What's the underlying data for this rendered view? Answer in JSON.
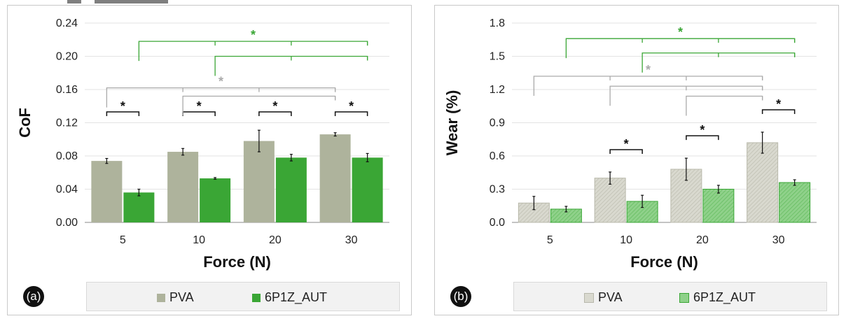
{
  "chart_data": [
    {
      "id": "a",
      "type": "bar",
      "panel_label": "(a)",
      "xlabel": "Force (N)",
      "ylabel": "CoF",
      "categories": [
        "5",
        "10",
        "20",
        "30"
      ],
      "yticks": [
        "0.00",
        "0.04",
        "0.08",
        "0.12",
        "0.16",
        "0.20",
        "0.24"
      ],
      "ylim": [
        0,
        0.24
      ],
      "series": [
        {
          "name": "PVA",
          "values": [
            0.074,
            0.085,
            0.098,
            0.106
          ],
          "errors": [
            0.003,
            0.004,
            0.013,
            0.002
          ],
          "color": "#aeb39c",
          "pattern": "solid"
        },
        {
          "name": "6P1Z_AUT",
          "values": [
            0.036,
            0.053,
            0.078,
            0.078
          ],
          "errors": [
            0.004,
            0.001,
            0.004,
            0.005
          ],
          "color": "#3aa635",
          "pattern": "solid"
        }
      ],
      "sig_pairs_label": "*",
      "sig_brackets": [
        {
          "series": "6P1Z_AUT",
          "from": "5",
          "to": [
            "10",
            "20",
            "30"
          ],
          "label": "*",
          "value": 0.218,
          "color": "#3aa635"
        },
        {
          "series": "6P1Z_AUT",
          "from": "10",
          "to": [
            "20",
            "30"
          ],
          "label": "",
          "value": 0.2,
          "color": "#3aa635"
        },
        {
          "series": "PVA",
          "from": "5",
          "to": [
            "10",
            "20",
            "30"
          ],
          "label": "*",
          "value": 0.162,
          "color": "#aaaaaa"
        },
        {
          "series": "PVA",
          "from": "10",
          "to": [
            "30"
          ],
          "label": "",
          "value": 0.152,
          "color": "#aaaaaa"
        }
      ],
      "grid": true,
      "legend": "bottom"
    },
    {
      "id": "b",
      "type": "bar",
      "panel_label": "(b)",
      "xlabel": "Force (N)",
      "ylabel": "Wear (%)",
      "categories": [
        "5",
        "10",
        "20",
        "30"
      ],
      "yticks": [
        "0.0",
        "0.3",
        "0.6",
        "0.9",
        "1.2",
        "1.5",
        "1.8"
      ],
      "ylim": [
        0,
        1.8
      ],
      "series": [
        {
          "name": "PVA",
          "values": [
            0.175,
            0.4,
            0.48,
            0.72
          ],
          "errors": [
            0.06,
            0.055,
            0.1,
            0.095
          ],
          "color": "#d9d9cf",
          "pattern": "hatched"
        },
        {
          "name": "6P1Z_AUT",
          "values": [
            0.12,
            0.19,
            0.3,
            0.36
          ],
          "errors": [
            0.025,
            0.055,
            0.035,
            0.025
          ],
          "color": "#8fd18a",
          "pattern": "hatched"
        }
      ],
      "pair_stars_on": [
        "10",
        "20",
        "30"
      ],
      "sig_brackets": [
        {
          "series": "6P1Z_AUT",
          "from": "5",
          "to": [
            "10",
            "20",
            "30"
          ],
          "label": "*",
          "value": 1.66,
          "color": "#3aa635"
        },
        {
          "series": "6P1Z_AUT",
          "from": "10",
          "to": [
            "20",
            "30"
          ],
          "label": "",
          "value": 1.53,
          "color": "#3aa635"
        },
        {
          "series": "PVA",
          "from": "5",
          "to": [
            "10",
            "20",
            "30"
          ],
          "label": "*",
          "value": 1.32,
          "color": "#aaaaaa"
        },
        {
          "series": "PVA",
          "from": "10",
          "to": [
            "20",
            "30"
          ],
          "label": "",
          "value": 1.23,
          "color": "#aaaaaa"
        },
        {
          "series": "PVA",
          "from": "20",
          "to": [
            "30"
          ],
          "label": "",
          "value": 1.14,
          "color": "#aaaaaa"
        }
      ],
      "grid": true,
      "legend": "bottom"
    }
  ]
}
